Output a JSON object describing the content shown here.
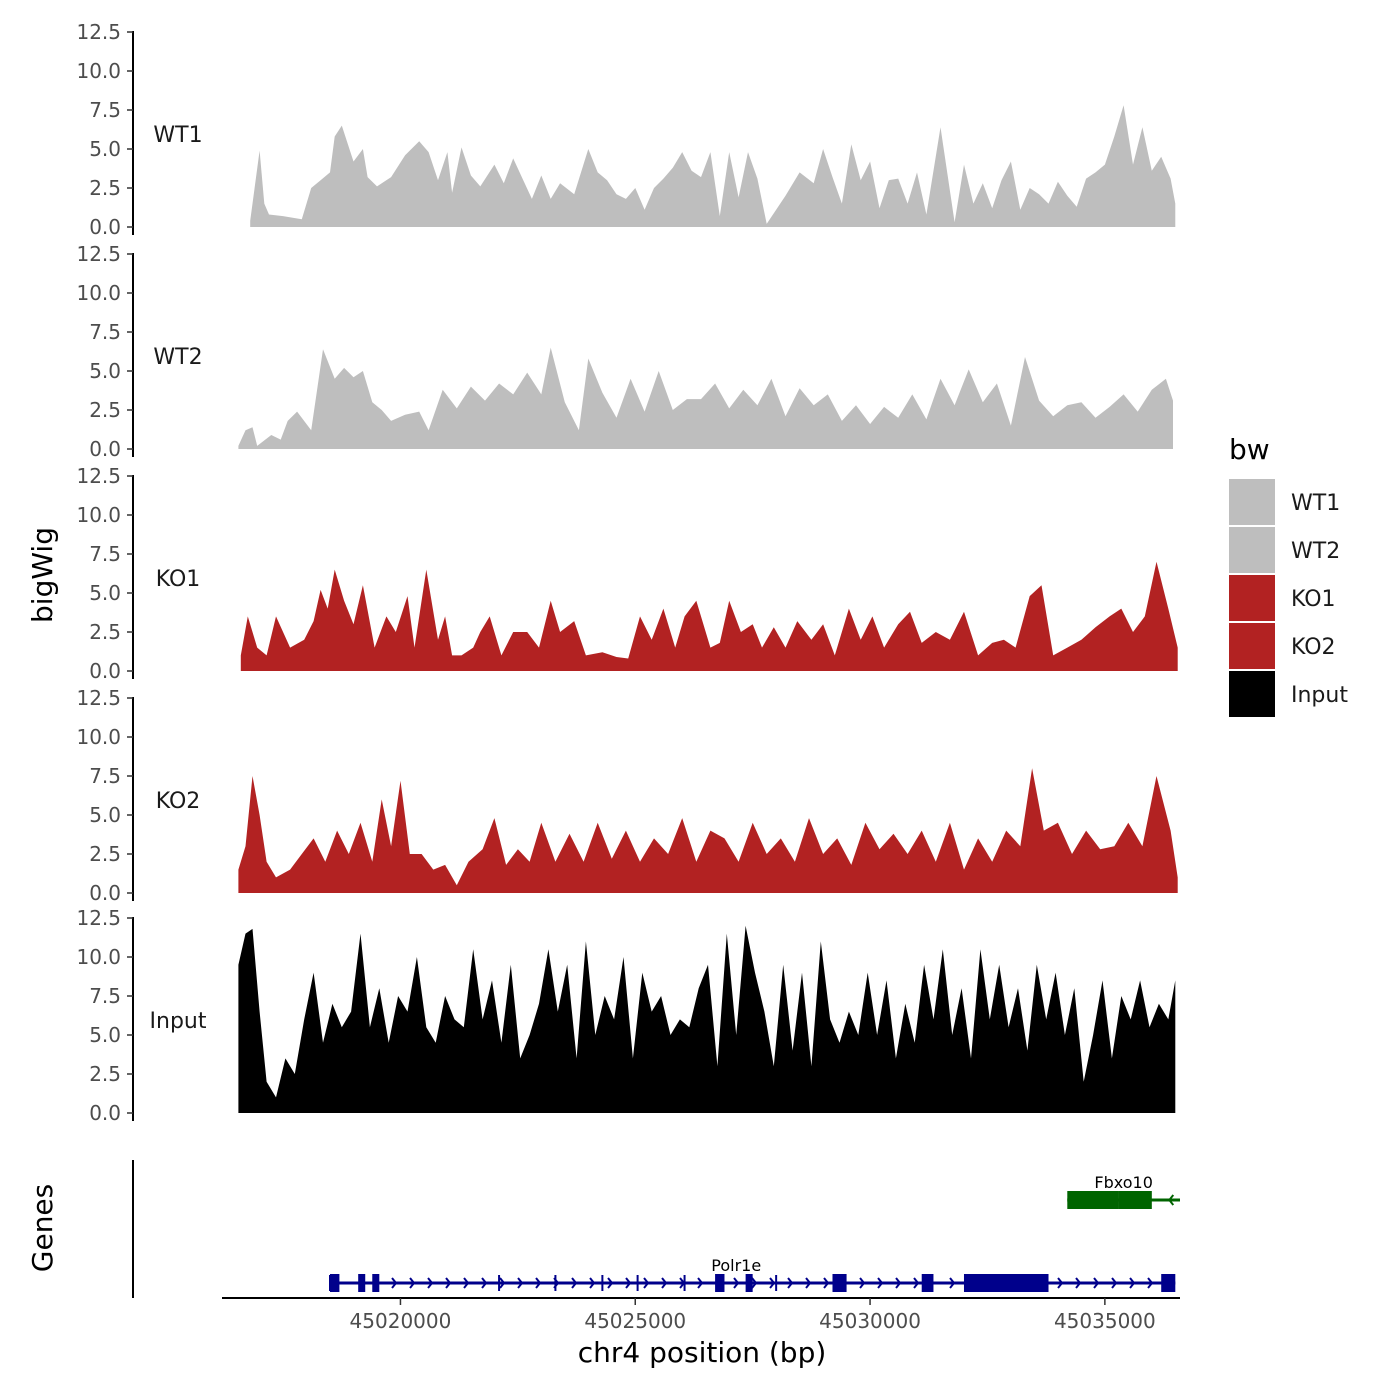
{
  "chart_data": {
    "type": "area",
    "title": "",
    "ylabel": "bigWig",
    "genes_label": "Genes",
    "xlabel": "chr4 position (bp)",
    "x_range": [
      45016200,
      45036600
    ],
    "x_ticks": [
      45020000,
      45025000,
      45030000,
      45035000
    ],
    "x_tick_labels": [
      "45020000",
      "45025000",
      "45030000",
      "45035000"
    ],
    "y_ticks": [
      0,
      2.5,
      5,
      7.5,
      10,
      12.5
    ],
    "y_tick_labels": [
      "0.0",
      "2.5",
      "5.0",
      "7.5",
      "10.0",
      "12.5"
    ],
    "ylim": [
      0,
      12.5
    ],
    "legend": {
      "title": "bw",
      "position": "right",
      "entries": [
        {
          "label": "WT1",
          "color": "#bebebe"
        },
        {
          "label": "WT2",
          "color": "#bebebe"
        },
        {
          "label": "KO1",
          "color": "#b22222"
        },
        {
          "label": "KO2",
          "color": "#b22222"
        },
        {
          "label": "Input",
          "color": "#000000"
        }
      ]
    },
    "series": [
      {
        "name": "WT1",
        "color": "#bebebe",
        "x": [
          45016800,
          45017000,
          45017100,
          45017200,
          45017500,
          45017900,
          45018100,
          45018300,
          45018500,
          45018600,
          45018750,
          45019000,
          45019200,
          45019300,
          45019500,
          45019800,
          45020100,
          45020400,
          45020600,
          45020800,
          45021000,
          45021100,
          45021300,
          45021500,
          45021700,
          45022000,
          45022200,
          45022400,
          45022600,
          45022800,
          45023000,
          45023200,
          45023400,
          45023700,
          45024000,
          45024200,
          45024400,
          45024600,
          45024800,
          45025000,
          45025200,
          45025400,
          45025600,
          45025800,
          45026000,
          45026200,
          45026400,
          45026600,
          45026800,
          45027000,
          45027200,
          45027400,
          45027600,
          45027800,
          45028200,
          45028500,
          45028800,
          45029000,
          45029200,
          45029400,
          45029600,
          45029800,
          45030000,
          45030200,
          45030400,
          45030600,
          45030800,
          45031000,
          45031200,
          45031500,
          45031800,
          45032000,
          45032200,
          45032400,
          45032600,
          45032800,
          45033000,
          45033200,
          45033400,
          45033600,
          45033800,
          45034000,
          45034200,
          45034400,
          45034600,
          45034800,
          45035000,
          45035200,
          45035400,
          45035600,
          45035800,
          45036000,
          45036200,
          45036400,
          45036500
        ],
        "y": [
          0.4,
          4.9,
          1.5,
          0.8,
          0.7,
          0.5,
          2.5,
          3.0,
          3.5,
          5.8,
          6.5,
          4.2,
          5.0,
          3.2,
          2.6,
          3.2,
          4.6,
          5.5,
          4.8,
          3.0,
          4.8,
          2.2,
          5.1,
          3.3,
          2.6,
          4.0,
          2.8,
          4.4,
          3.1,
          1.8,
          3.3,
          1.8,
          2.8,
          2.1,
          5.0,
          3.5,
          3.0,
          2.1,
          1.8,
          2.5,
          1.1,
          2.5,
          3.1,
          3.8,
          4.8,
          3.6,
          3.2,
          4.8,
          0.7,
          4.8,
          1.9,
          4.8,
          3.1,
          0.2,
          2.0,
          3.5,
          2.8,
          5.0,
          3.2,
          1.5,
          5.3,
          3.0,
          4.2,
          1.2,
          3.0,
          3.1,
          1.5,
          3.5,
          0.8,
          6.4,
          0.3,
          4.0,
          1.5,
          2.8,
          1.2,
          3.0,
          4.2,
          1.1,
          2.5,
          2.1,
          1.5,
          2.9,
          2.0,
          1.3,
          3.1,
          3.5,
          4.0,
          5.8,
          7.8,
          4.0,
          6.4,
          3.6,
          4.5,
          3.1,
          1.5
        ]
      },
      {
        "name": "WT2",
        "color": "#bebebe",
        "x": [
          45016550,
          45016700,
          45016850,
          45016950,
          45017250,
          45017450,
          45017600,
          45017800,
          45018100,
          45018350,
          45018600,
          45018800,
          45019000,
          45019200,
          45019400,
          45019600,
          45019800,
          45020100,
          45020400,
          45020600,
          45020900,
          45021200,
          45021500,
          45021800,
          45022100,
          45022400,
          45022700,
          45023000,
          45023200,
          45023500,
          45023800,
          45024000,
          45024300,
          45024600,
          45024900,
          45025200,
          45025500,
          45025800,
          45026100,
          45026400,
          45026700,
          45027000,
          45027300,
          45027600,
          45027900,
          45028200,
          45028500,
          45028800,
          45029100,
          45029400,
          45029700,
          45030000,
          45030300,
          45030600,
          45030900,
          45031200,
          45031500,
          45031800,
          45032100,
          45032400,
          45032700,
          45033000,
          45033300,
          45033600,
          45033900,
          45034200,
          45034500,
          45034800,
          45035100,
          45035400,
          45035700,
          45036000,
          45036300,
          45036450
        ],
        "y": [
          0.2,
          1.2,
          1.4,
          0.2,
          0.9,
          0.6,
          1.8,
          2.4,
          1.2,
          6.4,
          4.5,
          5.2,
          4.6,
          5.0,
          3.0,
          2.5,
          1.8,
          2.2,
          2.4,
          1.2,
          3.8,
          2.6,
          4.0,
          3.1,
          4.2,
          3.5,
          4.9,
          3.5,
          6.5,
          3.0,
          1.2,
          5.8,
          3.6,
          2.0,
          4.5,
          2.4,
          5.0,
          2.5,
          3.2,
          3.2,
          4.2,
          2.6,
          3.8,
          2.8,
          4.5,
          2.1,
          3.9,
          2.8,
          3.5,
          1.8,
          2.8,
          1.6,
          2.7,
          2.0,
          3.5,
          1.9,
          4.5,
          2.8,
          5.1,
          3.0,
          4.2,
          1.5,
          5.9,
          3.1,
          2.1,
          2.8,
          3.0,
          2.0,
          2.7,
          3.5,
          2.4,
          3.8,
          4.5,
          3.1
        ]
      },
      {
        "name": "KO1",
        "color": "#b22222",
        "x": [
          45016600,
          45016750,
          45016950,
          45017150,
          45017350,
          45017650,
          45017950,
          45018150,
          45018300,
          45018450,
          45018600,
          45018800,
          45019000,
          45019200,
          45019450,
          45019700,
          45019900,
          45020150,
          45020300,
          45020550,
          45020800,
          45020950,
          45021100,
          45021300,
          45021550,
          45021700,
          45021900,
          45022150,
          45022400,
          45022700,
          45022950,
          45023200,
          45023400,
          45023700,
          45023950,
          45024300,
          45024600,
          45024850,
          45025100,
          45025350,
          45025600,
          45025850,
          45026050,
          45026300,
          45026600,
          45026800,
          45027000,
          45027250,
          45027500,
          45027700,
          45027950,
          45028200,
          45028450,
          45028750,
          45029000,
          45029250,
          45029550,
          45029800,
          45030050,
          45030300,
          45030600,
          45030850,
          45031100,
          45031400,
          45031700,
          45032000,
          45032300,
          45032600,
          45032850,
          45033100,
          45033400,
          45033650,
          45033900,
          45034200,
          45034500,
          45034800,
          45035100,
          45035350,
          45035600,
          45035850,
          45036100,
          45036350,
          45036550
        ],
        "y": [
          1.0,
          3.5,
          1.5,
          1.0,
          3.5,
          1.5,
          2.0,
          3.2,
          5.2,
          4.0,
          6.5,
          4.5,
          3.0,
          5.5,
          1.5,
          3.5,
          2.5,
          4.8,
          1.5,
          6.5,
          2.0,
          3.5,
          1.0,
          1.0,
          1.5,
          2.5,
          3.5,
          1.0,
          2.5,
          2.5,
          1.5,
          4.5,
          2.5,
          3.2,
          1.0,
          1.2,
          0.9,
          0.8,
          3.5,
          2.0,
          4.0,
          1.5,
          3.5,
          4.5,
          1.5,
          1.8,
          4.5,
          2.5,
          3.0,
          1.5,
          2.8,
          1.5,
          3.2,
          2.0,
          3.0,
          1.0,
          4.0,
          2.0,
          3.5,
          1.5,
          3.0,
          3.8,
          1.8,
          2.5,
          2.0,
          3.8,
          1.0,
          1.8,
          2.0,
          1.5,
          4.8,
          5.5,
          1.0,
          1.5,
          2.0,
          2.8,
          3.5,
          4.0,
          2.5,
          3.5,
          7.0,
          4.0,
          1.5
        ]
      },
      {
        "name": "KO2",
        "color": "#b22222",
        "x": [
          45016550,
          45016700,
          45016850,
          45017000,
          45017150,
          45017350,
          45017650,
          45017900,
          45018150,
          45018400,
          45018650,
          45018900,
          45019150,
          45019400,
          45019600,
          45019800,
          45020000,
          45020200,
          45020450,
          45020700,
          45020950,
          45021200,
          45021450,
          45021750,
          45022000,
          45022250,
          45022500,
          45022750,
          45023000,
          45023300,
          45023600,
          45023900,
          45024200,
          45024500,
          45024800,
          45025100,
          45025400,
          45025700,
          45026000,
          45026300,
          45026600,
          45026900,
          45027200,
          45027500,
          45027800,
          45028100,
          45028400,
          45028700,
          45029000,
          45029300,
          45029600,
          45029900,
          45030200,
          45030500,
          45030800,
          45031100,
          45031400,
          45031700,
          45032000,
          45032300,
          45032600,
          45032900,
          45033200,
          45033450,
          45033700,
          45034000,
          45034300,
          45034600,
          45034900,
          45035200,
          45035500,
          45035800,
          45036100,
          45036400,
          45036550
        ],
        "y": [
          1.5,
          3.0,
          7.5,
          5.0,
          2.0,
          1.0,
          1.5,
          2.5,
          3.5,
          2.0,
          4.0,
          2.5,
          4.5,
          2.0,
          6.0,
          3.0,
          7.2,
          2.5,
          2.5,
          1.5,
          1.8,
          0.5,
          2.0,
          2.8,
          4.8,
          1.8,
          2.8,
          2.0,
          4.5,
          2.0,
          3.8,
          2.0,
          4.5,
          2.2,
          4.0,
          2.0,
          3.5,
          2.5,
          4.8,
          2.0,
          4.0,
          3.5,
          2.0,
          4.5,
          2.5,
          3.5,
          2.0,
          4.8,
          2.5,
          3.5,
          1.8,
          4.5,
          2.8,
          3.8,
          2.5,
          4.0,
          2.0,
          4.5,
          1.5,
          3.5,
          2.0,
          4.0,
          3.0,
          8.0,
          4.0,
          4.5,
          2.5,
          4.0,
          2.8,
          3.0,
          4.5,
          3.0,
          7.5,
          4.0,
          1.0
        ]
      },
      {
        "name": "Input",
        "color": "#000000",
        "x": [
          45016550,
          45016700,
          45016850,
          45017000,
          45017150,
          45017350,
          45017550,
          45017750,
          45017950,
          45018150,
          45018350,
          45018550,
          45018750,
          45018950,
          45019150,
          45019350,
          45019550,
          45019750,
          45019950,
          45020150,
          45020350,
          45020550,
          45020750,
          45020950,
          45021150,
          45021350,
          45021550,
          45021750,
          45021950,
          45022150,
          45022350,
          45022550,
          45022750,
          45022950,
          45023150,
          45023350,
          45023550,
          45023750,
          45023950,
          45024150,
          45024350,
          45024550,
          45024750,
          45024950,
          45025150,
          45025350,
          45025550,
          45025750,
          45025950,
          45026150,
          45026350,
          45026550,
          45026750,
          45026950,
          45027150,
          45027350,
          45027550,
          45027750,
          45027950,
          45028150,
          45028350,
          45028550,
          45028750,
          45028950,
          45029150,
          45029350,
          45029550,
          45029750,
          45029950,
          45030150,
          45030350,
          45030550,
          45030750,
          45030950,
          45031150,
          45031350,
          45031550,
          45031750,
          45031950,
          45032150,
          45032350,
          45032550,
          45032750,
          45032950,
          45033150,
          45033350,
          45033550,
          45033750,
          45033950,
          45034150,
          45034350,
          45034550,
          45034750,
          45034950,
          45035150,
          45035350,
          45035550,
          45035750,
          45035950,
          45036150,
          45036350,
          45036500
        ],
        "y": [
          9.5,
          11.5,
          11.8,
          6.5,
          2.0,
          1.0,
          3.5,
          2.5,
          6.0,
          9.0,
          4.5,
          7.0,
          5.5,
          6.5,
          11.5,
          5.5,
          8.0,
          4.5,
          7.5,
          6.5,
          10.0,
          5.5,
          4.5,
          7.5,
          6.0,
          5.5,
          10.5,
          6.0,
          8.5,
          4.5,
          9.5,
          3.5,
          5.0,
          7.0,
          10.5,
          6.5,
          9.5,
          3.5,
          11.0,
          5.0,
          7.5,
          6.0,
          10.0,
          3.5,
          9.0,
          6.5,
          7.5,
          5.0,
          6.0,
          5.5,
          8.0,
          9.5,
          3.0,
          11.5,
          5.0,
          12.0,
          9.0,
          6.5,
          3.0,
          9.5,
          4.0,
          9.0,
          3.0,
          11.0,
          6.0,
          4.5,
          6.5,
          5.0,
          9.0,
          5.0,
          8.5,
          3.5,
          7.0,
          4.5,
          9.5,
          6.0,
          10.5,
          5.0,
          8.0,
          3.5,
          10.5,
          6.0,
          9.5,
          5.5,
          8.0,
          4.0,
          9.5,
          6.0,
          9.0,
          5.0,
          8.0,
          2.0,
          5.0,
          8.5,
          3.5,
          7.5,
          6.0,
          8.5,
          5.5,
          7.0,
          6.0,
          8.5
        ]
      }
    ],
    "genes": [
      {
        "name": "Polr1e",
        "color": "#00008b",
        "strand": "+",
        "row": 2,
        "start": 45018500,
        "end": 45036500,
        "exons": [
          [
            45018500,
            45018700
          ],
          [
            45019100,
            45019250
          ],
          [
            45019400,
            45019550
          ],
          [
            45026700,
            45026900
          ],
          [
            45027350,
            45027500
          ],
          [
            45029200,
            45029500
          ],
          [
            45031100,
            45031350
          ],
          [
            45032000,
            45033800
          ],
          [
            45036200,
            45036500
          ]
        ],
        "intron_marks": [
          45018500,
          45022100,
          45023300,
          45024300,
          45025050,
          45026050,
          45028000
        ]
      },
      {
        "name": "Fbxo10",
        "color": "#006400",
        "strand": "-",
        "row": 1,
        "start": 45034200,
        "end": 45036600,
        "exons": [
          [
            45034200,
            45035300
          ],
          [
            45035300,
            45036000
          ]
        ],
        "intron_marks": []
      }
    ]
  }
}
